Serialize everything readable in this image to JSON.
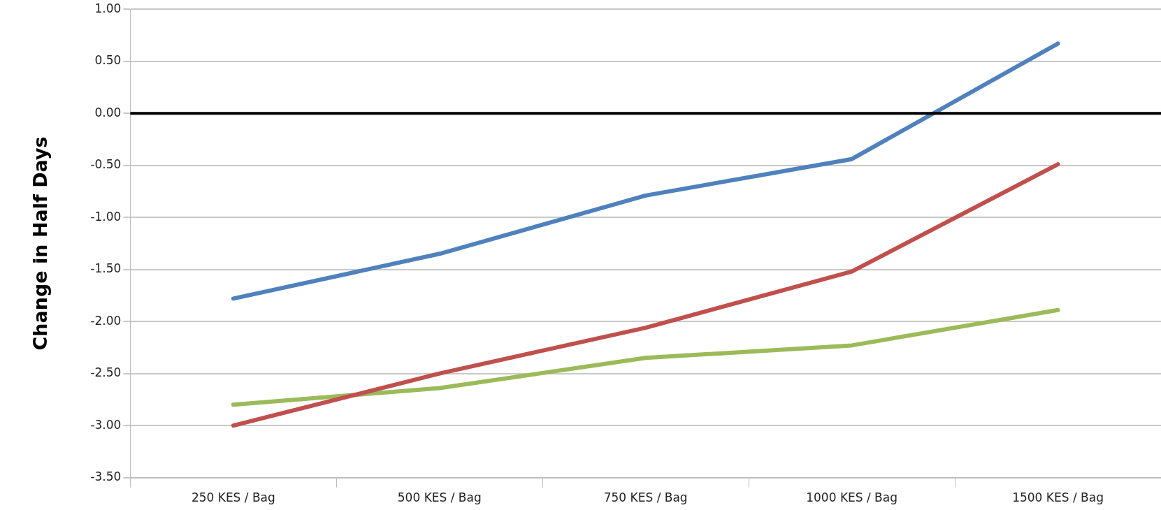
{
  "chart_data": {
    "type": "line",
    "ylabel": "Change in Half Days",
    "categories": [
      "250 KES / Bag",
      "500 KES / Bag",
      "750 KES / Bag",
      "1000 KES / Bag",
      "1500 KES / Bag"
    ],
    "series": [
      {
        "color": "#4f81bd",
        "values": [
          -1.78,
          -1.35,
          -0.79,
          -0.44,
          0.67
        ]
      },
      {
        "color": "#c0504d",
        "values": [
          -3.0,
          -2.5,
          -2.06,
          -1.52,
          -0.49
        ]
      },
      {
        "color": "#9bbb59",
        "values": [
          -2.8,
          -2.64,
          -2.35,
          -2.23,
          -1.89
        ]
      }
    ],
    "ylim": [
      -3.5,
      1.0
    ],
    "yticks": [
      {
        "value": -3.5,
        "label": "-3.50"
      },
      {
        "value": -3,
        "label": "-3.00"
      },
      {
        "value": -2.5,
        "label": "-2.50"
      },
      {
        "value": -2,
        "label": "-2.00"
      },
      {
        "value": -1.5,
        "label": "-1.50"
      },
      {
        "value": -1,
        "label": "-1.00"
      },
      {
        "value": -0.5,
        "label": "-0.50"
      },
      {
        "value": 0,
        "label": "0.00"
      },
      {
        "value": 0.5,
        "label": "0.50"
      },
      {
        "value": 1,
        "label": "1.00"
      }
    ],
    "grid": "y",
    "legend": false,
    "marker": "none",
    "line_style": "solid",
    "ref_lines": [
      {
        "axis": "y",
        "value": 0,
        "color": "#000000"
      }
    ]
  }
}
